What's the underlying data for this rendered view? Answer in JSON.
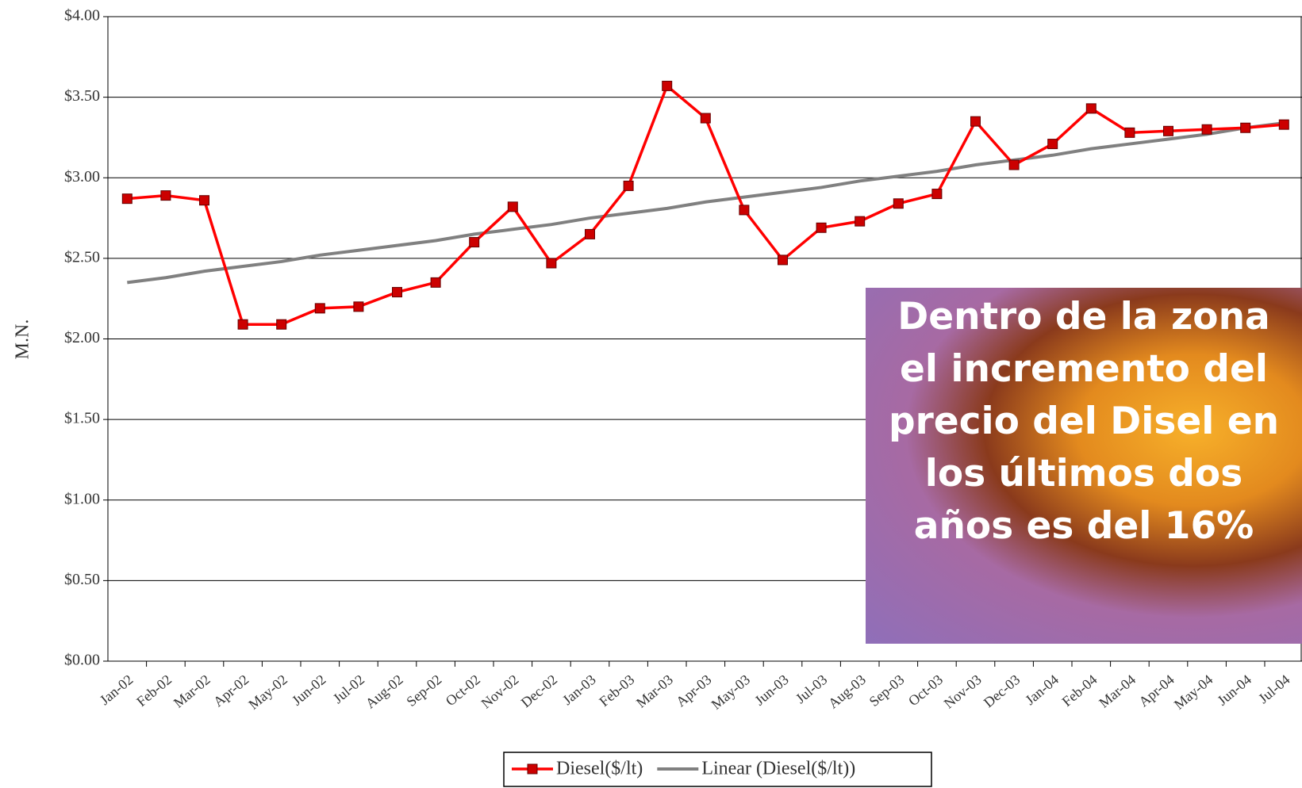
{
  "chart_data": {
    "type": "line",
    "ylabel": "M.N.",
    "categories": [
      "Jan-02",
      "Feb-02",
      "Mar-02",
      "Apr-02",
      "May-02",
      "Jun-02",
      "Jul-02",
      "Aug-02",
      "Sep-02",
      "Oct-02",
      "Nov-02",
      "Dec-02",
      "Jan-03",
      "Feb-03",
      "Mar-03",
      "Apr-03",
      "May-03",
      "Jun-03",
      "Jul-03",
      "Aug-03",
      "Sep-03",
      "Oct-03",
      "Nov-03",
      "Dec-03",
      "Jan-04",
      "Feb-04",
      "Mar-04",
      "Apr-04",
      "May-04",
      "Jun-04",
      "Jul-04"
    ],
    "series": [
      {
        "name": "Diesel($/lt)",
        "color": "#ff0000",
        "marker_color": "#cc0000",
        "values": [
          2.87,
          2.89,
          2.86,
          2.09,
          2.09,
          2.19,
          2.2,
          2.29,
          2.35,
          2.6,
          2.82,
          2.47,
          2.65,
          2.95,
          3.57,
          3.37,
          2.8,
          2.49,
          2.69,
          2.73,
          2.84,
          2.9,
          3.35,
          3.08,
          3.21,
          3.43,
          3.28,
          3.29,
          3.3,
          3.31,
          3.33
        ]
      },
      {
        "name": "Linear (Diesel($/lt))",
        "color": "#808080",
        "values": [
          2.35,
          2.38,
          2.42,
          2.45,
          2.48,
          2.52,
          2.55,
          2.58,
          2.61,
          2.65,
          2.68,
          2.71,
          2.75,
          2.78,
          2.81,
          2.85,
          2.88,
          2.91,
          2.94,
          2.98,
          3.01,
          3.04,
          3.08,
          3.11,
          3.14,
          3.18,
          3.21,
          3.24,
          3.27,
          3.31,
          3.34
        ]
      }
    ],
    "ylim": [
      0,
      4
    ],
    "yticks": [
      {
        "value": 0,
        "label": "$0.00"
      },
      {
        "value": 0.5,
        "label": "$0.50"
      },
      {
        "value": 1,
        "label": "$1.00"
      },
      {
        "value": 1.5,
        "label": "$1.50"
      },
      {
        "value": 2,
        "label": "$2.00"
      },
      {
        "value": 2.5,
        "label": "$2.50"
      },
      {
        "value": 3,
        "label": "$3.00"
      },
      {
        "value": 3.5,
        "label": "$3.50"
      },
      {
        "value": 4,
        "label": "$4.00"
      }
    ],
    "grid": true,
    "legend": "bottom",
    "annotation": "Dentro de la zona el incremento del precio del Disel en los últimos dos años es del 16%"
  }
}
